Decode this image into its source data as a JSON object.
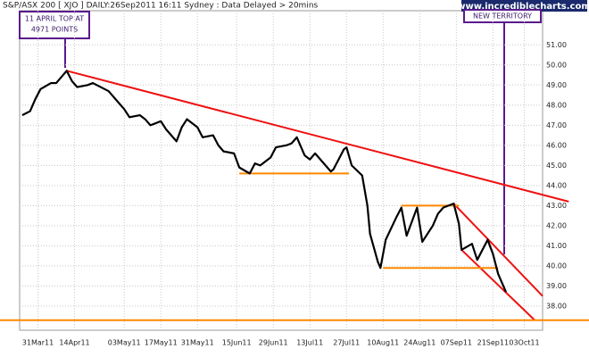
{
  "chart_data": {
    "type": "line",
    "title": "S&P/ASX 200 [ XJO ] DAILY:26Sep2011 16:11 Sydney : Data Delayed > 20mins",
    "brand": "www.incrediblecharts.com",
    "annotations": [
      {
        "lines": [
          "11 APRIL TOP AT",
          "4971 POINTS"
        ]
      },
      {
        "lines": [
          "NEW TERRITORY"
        ]
      }
    ],
    "x": [
      "25Mar11",
      "28Mar11",
      "30Mar11",
      "01Apr11",
      "05Apr11",
      "07Apr11",
      "11Apr11",
      "13Apr11",
      "15Apr11",
      "19Apr11",
      "21Apr11",
      "27Apr11",
      "29Apr11",
      "03May11",
      "05May11",
      "09May11",
      "11May11",
      "13May11",
      "17May11",
      "19May11",
      "23May11",
      "25May11",
      "27May11",
      "31May11",
      "02Jun11",
      "06Jun11",
      "08Jun11",
      "10Jun11",
      "14Jun11",
      "16Jun11",
      "20Jun11",
      "22Jun11",
      "24Jun11",
      "28Jun11",
      "30Jun11",
      "04Jul11",
      "06Jul11",
      "08Jul11",
      "11Jul11",
      "13Jul11",
      "15Jul11",
      "19Jul11",
      "21Jul11",
      "22Jul11",
      "26Jul11",
      "27Jul11",
      "29Jul11",
      "02Aug11",
      "04Aug11",
      "05Aug11",
      "08Aug11",
      "09Aug11",
      "11Aug11",
      "15Aug11",
      "17Aug11",
      "19Aug11",
      "23Aug11",
      "25Aug11",
      "29Aug11",
      "31Aug11",
      "02Sep11",
      "06Sep11",
      "08Sep11",
      "09Sep11",
      "13Sep11",
      "15Sep11",
      "19Sep11",
      "21Sep11",
      "23Sep11",
      "26Sep11"
    ],
    "values": [
      47.5,
      47.7,
      48.3,
      48.8,
      49.1,
      49.1,
      49.71,
      49.2,
      48.9,
      49.0,
      49.1,
      48.7,
      48.4,
      47.8,
      47.4,
      47.5,
      47.3,
      47.0,
      47.2,
      46.8,
      46.2,
      46.9,
      47.3,
      46.9,
      46.4,
      46.5,
      46.0,
      45.7,
      45.6,
      44.9,
      44.6,
      45.1,
      45.0,
      45.4,
      45.9,
      46.0,
      46.1,
      46.4,
      45.5,
      45.3,
      45.6,
      45.0,
      44.7,
      44.8,
      45.8,
      45.9,
      45.0,
      44.5,
      43.0,
      41.6,
      40.2,
      39.9,
      41.3,
      42.4,
      42.9,
      41.5,
      42.9,
      41.2,
      42.0,
      42.6,
      42.9,
      43.1,
      42.1,
      40.8,
      41.1,
      40.3,
      41.3,
      40.6,
      39.6,
      38.7
    ],
    "color": "#000000",
    "xlim": [
      "24Mar11",
      "10Oct11"
    ],
    "xticks": [
      "31Mar11",
      "14Apr11",
      "03May11",
      "17May11",
      "31May11",
      "15Jun11",
      "29Jun11",
      "13Jul11",
      "27Jul11",
      "10Aug11",
      "24Aug11",
      "07Sep11",
      "21Sep11",
      "03Oct11"
    ],
    "ylim": [
      36.8,
      52.7
    ],
    "yticks": [
      {
        "value": 38,
        "label": "38.00"
      },
      {
        "value": 39,
        "label": "39.00"
      },
      {
        "value": 40,
        "label": "40.00"
      },
      {
        "value": 41,
        "label": "41.00"
      },
      {
        "value": 42,
        "label": "42.00"
      },
      {
        "value": 43,
        "label": "43.00"
      },
      {
        "value": 44,
        "label": "44.00"
      },
      {
        "value": 45,
        "label": "45.00"
      },
      {
        "value": 46,
        "label": "46.00"
      },
      {
        "value": 47,
        "label": "47.00"
      },
      {
        "value": 48,
        "label": "48.00"
      },
      {
        "value": 49,
        "label": "49.00"
      },
      {
        "value": 50,
        "label": "50.00"
      },
      {
        "value": 51,
        "label": "51.00"
      }
    ],
    "grid": true,
    "trend_lines": [
      {
        "color": "#ee1111",
        "from": [
          "11Apr11",
          49.71
        ],
        "to": [
          "20Oct11",
          43.2
        ]
      },
      {
        "color": "#ee1111",
        "from": [
          "06Sep11",
          43.1
        ],
        "to": [
          "10Oct11",
          38.5
        ]
      },
      {
        "color": "#ee1111",
        "from": [
          "09Sep11",
          40.8
        ],
        "to": [
          "07Oct11",
          37.3
        ]
      },
      {
        "color": "#ff8800",
        "from": [
          "16Jun11",
          44.6
        ],
        "to": [
          "28Jul11",
          44.6
        ]
      },
      {
        "color": "#ff8800",
        "from": [
          "17Aug11",
          43.0
        ],
        "to": [
          "08Sep11",
          43.0
        ]
      },
      {
        "color": "#ff8800",
        "from": [
          "10Aug11",
          39.9
        ],
        "to": [
          "23Sep11",
          39.9
        ]
      },
      {
        "color": "#ff8800",
        "from": [
          "24Mar11",
          37.3
        ],
        "to": [
          "10Oct11",
          37.3
        ]
      }
    ]
  }
}
